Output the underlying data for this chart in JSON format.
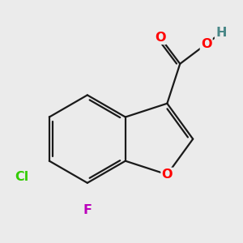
{
  "background_color": "#ebebeb",
  "bond_color": "#1a1a1a",
  "bond_width": 1.6,
  "atom_colors": {
    "O": "#ff0000",
    "H": "#4a8888",
    "Cl": "#33cc00",
    "F": "#bb00bb"
  },
  "font_size": 11.5
}
